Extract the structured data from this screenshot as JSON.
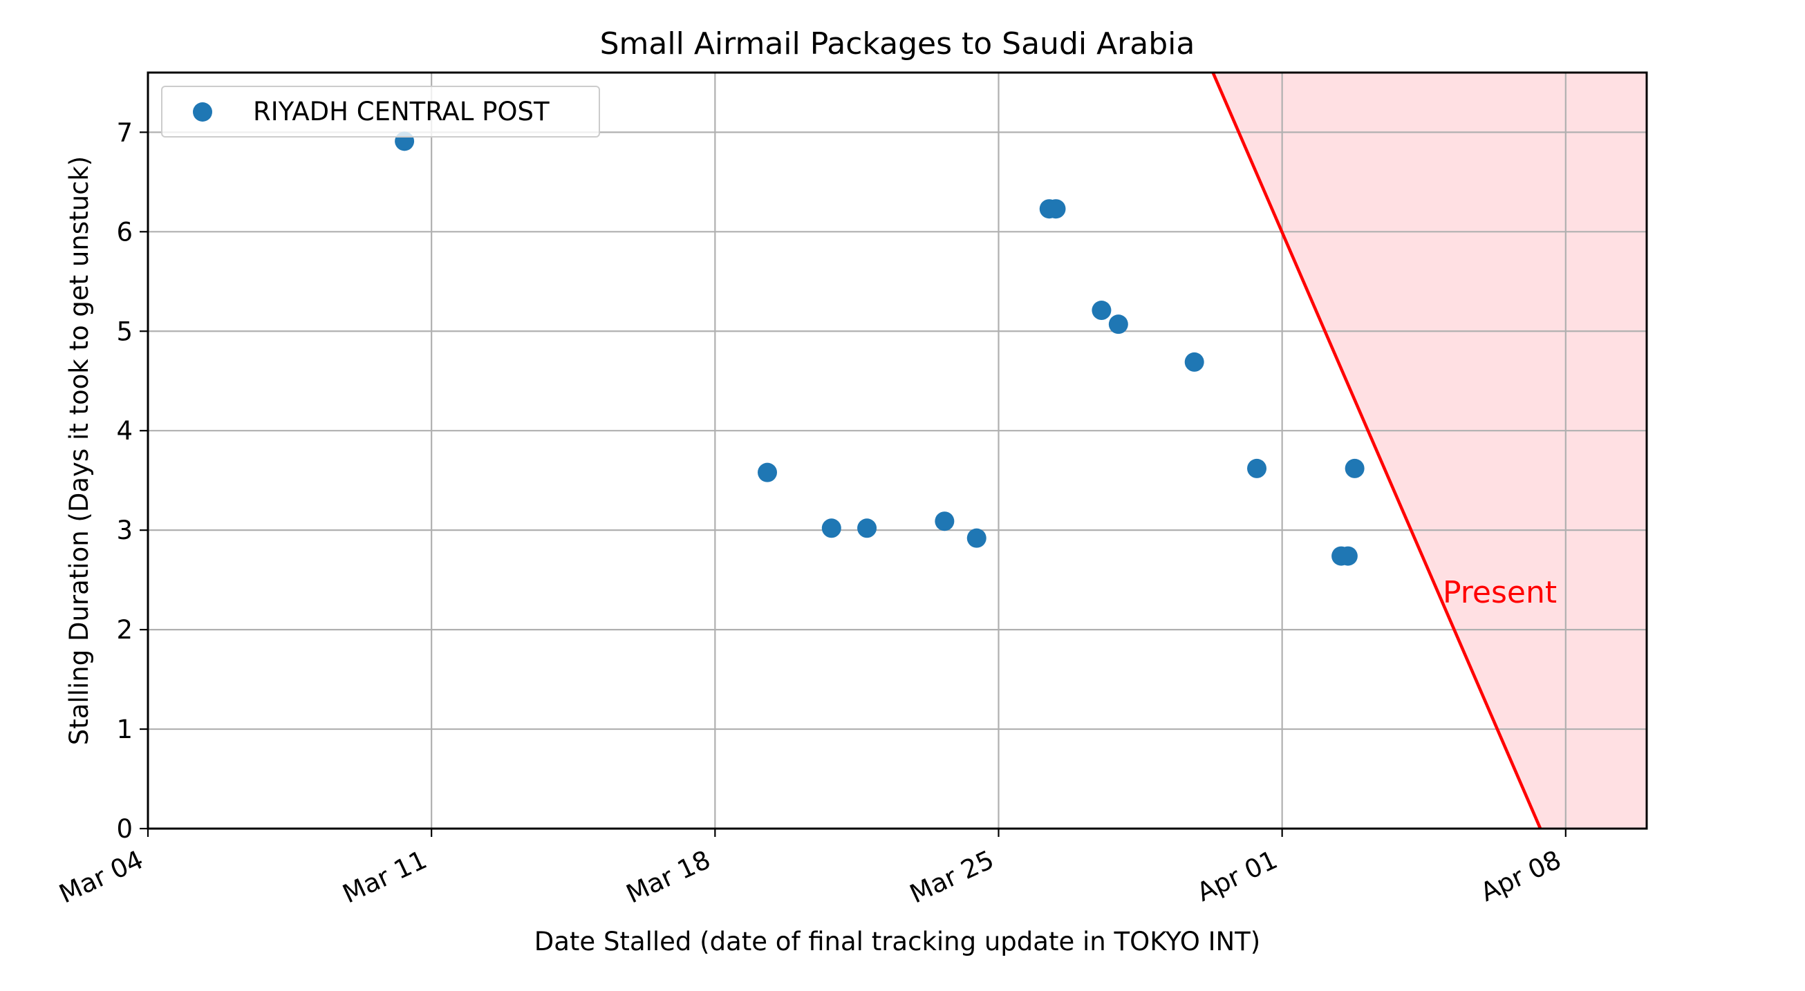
{
  "chart_data": {
    "type": "scatter",
    "title": "Small Airmail Packages to Saudi Arabia",
    "xlabel": "Date Stalled (date of final tracking update in TOKYO INT)",
    "ylabel": "Stalling Duration (Days it took to get unstuck)",
    "x_axis": "date",
    "xlim": [
      "2021-03-04",
      "2021-04-10"
    ],
    "ylim": [
      0,
      7.6
    ],
    "x_ticks": [
      {
        "date": "2021-03-04",
        "label": "Mar 04"
      },
      {
        "date": "2021-03-11",
        "label": "Mar 11"
      },
      {
        "date": "2021-03-18",
        "label": "Mar 18"
      },
      {
        "date": "2021-03-25",
        "label": "Mar 25"
      },
      {
        "date": "2021-04-01",
        "label": "Apr 01"
      },
      {
        "date": "2021-04-08",
        "label": "Apr 08"
      }
    ],
    "y_ticks": [
      0,
      1,
      2,
      3,
      4,
      5,
      6,
      7
    ],
    "grid": true,
    "legend_position": "top-left",
    "series": [
      {
        "name": "RIYADH CENTRAL POST",
        "color": "#1f77b4",
        "points": [
          {
            "x": "2021-03-10T08:00",
            "y": 6.91
          },
          {
            "x": "2021-03-19T07:00",
            "y": 3.58
          },
          {
            "x": "2021-03-20T21:00",
            "y": 3.02
          },
          {
            "x": "2021-03-21T18:00",
            "y": 3.02
          },
          {
            "x": "2021-03-23T16:00",
            "y": 3.09
          },
          {
            "x": "2021-03-24T11:00",
            "y": 2.92
          },
          {
            "x": "2021-03-26T06:00",
            "y": 6.23
          },
          {
            "x": "2021-03-26T10:00",
            "y": 6.23
          },
          {
            "x": "2021-03-27T13:00",
            "y": 5.21
          },
          {
            "x": "2021-03-27T23:00",
            "y": 5.07
          },
          {
            "x": "2021-03-29T20:00",
            "y": 4.69
          },
          {
            "x": "2021-03-31T09:00",
            "y": 3.62
          },
          {
            "x": "2021-04-02T11:00",
            "y": 2.74
          },
          {
            "x": "2021-04-02T15:00",
            "y": 2.74
          },
          {
            "x": "2021-04-02T19:00",
            "y": 3.62
          }
        ]
      }
    ],
    "present_line": {
      "label": "Present",
      "color": "#ff0000",
      "fill_color": "#ffe0e3",
      "points": [
        {
          "x": "2021-03-30T07:00",
          "y": 7.6
        },
        {
          "x": "2021-04-07T09:00",
          "y": 0
        }
      ]
    }
  }
}
